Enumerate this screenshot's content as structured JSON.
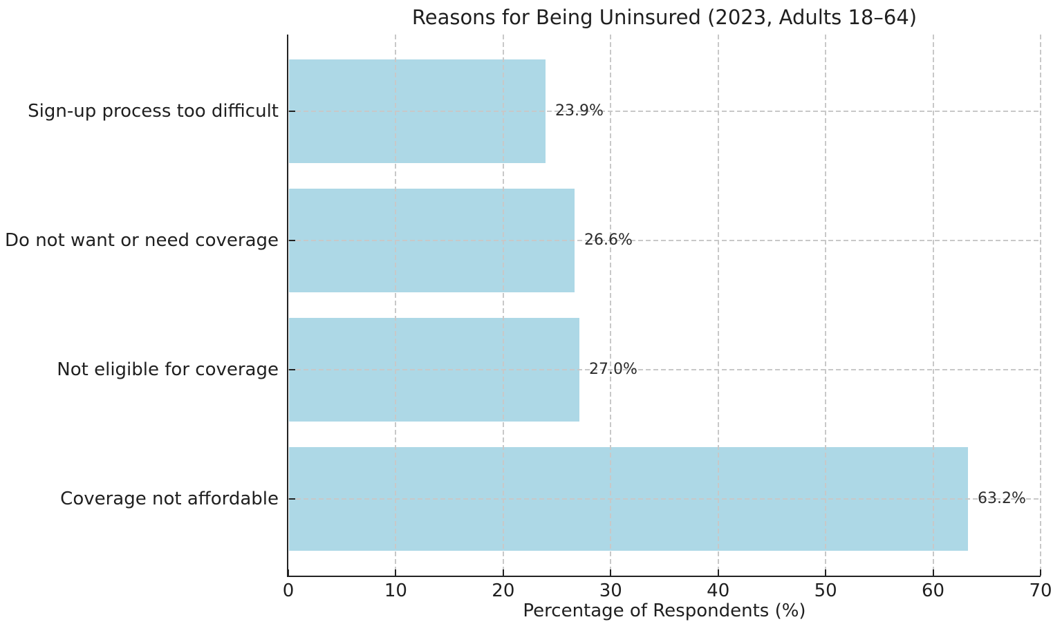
{
  "chart_data": {
    "type": "bar",
    "orientation": "horizontal",
    "title": "Reasons for Being Uninsured (2023, Adults 18–64)",
    "xlabel": "Percentage of Respondents (%)",
    "ylabel": "",
    "categories": [
      "Sign-up process too difficult",
      "Do not want or need coverage",
      "Not eligible for coverage",
      "Coverage not affordable"
    ],
    "values": [
      23.9,
      26.6,
      27.0,
      63.2
    ],
    "value_labels": [
      "23.9%",
      "26.6%",
      "27.0%",
      "63.2%"
    ],
    "xlim": [
      0,
      70
    ],
    "xticks": [
      0,
      10,
      20,
      30,
      40,
      50,
      60,
      70
    ],
    "grid": true,
    "grid_style": "dashed",
    "legend": "none",
    "bar_color": "#ADD8E6",
    "grid_color": "#c8c8c8",
    "axis_color": "#222222",
    "text_color": "#1f1f1f"
  }
}
